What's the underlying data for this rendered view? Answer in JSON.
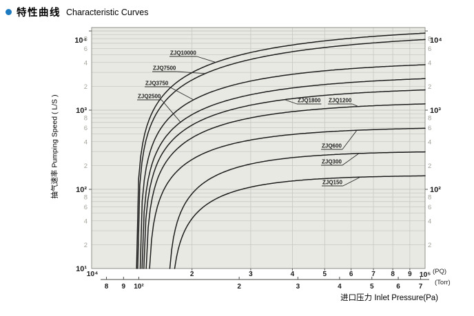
{
  "page_title": {
    "zh": "特性曲线",
    "en": "Characteristic Curves"
  },
  "accent_color": "#1c7ac0",
  "colors": {
    "plot_background": "#e9e9e4",
    "grid": "#c8c8c1",
    "plot_border": "#90908a",
    "curve": "#1c1c1c",
    "minor_tick_label": "#a3a29b",
    "major_tick_label": "#1a1a1a"
  },
  "chart_data": {
    "type": "line",
    "title": "特性曲线 Characteristic Curves",
    "xlabel": "进口压力 Inlet Pressure(Pa)",
    "ylabel": "抽气速率 Pumping Speed ( L/S )",
    "xscale": "log",
    "yscale": "log",
    "xlim_pa": [
      10000,
      100000
    ],
    "ylim_ls": [
      10,
      11500
    ],
    "grid": "on",
    "legend": "inline curve callouts",
    "x_axis_pa": {
      "unit_suffix": "(PQ)",
      "decade_ticks": [
        {
          "label": "10⁴",
          "value": 10000
        },
        {
          "label": "10⁵",
          "value": 100000
        }
      ],
      "minor_ticks": [
        2,
        3,
        4,
        5,
        6,
        7,
        8,
        9
      ]
    },
    "x_axis_torr": {
      "unit_suffix": "(Torr)",
      "ticks": [
        {
          "label": "8",
          "value_torr": 80
        },
        {
          "label": "9",
          "value_torr": 90
        },
        {
          "label": "10²",
          "value_torr": 100
        },
        {
          "label": "2",
          "value_torr": 200
        },
        {
          "label": "3",
          "value_torr": 300
        },
        {
          "label": "4",
          "value_torr": 400
        },
        {
          "label": "5",
          "value_torr": 500
        },
        {
          "label": "6",
          "value_torr": 600
        },
        {
          "label": "7",
          "value_torr": 700
        }
      ]
    },
    "y_axis": {
      "sides": [
        "left",
        "right"
      ],
      "decade_ticks": [
        {
          "label": "10⁴",
          "value": 10000
        },
        {
          "label": "10³",
          "value": 1000
        },
        {
          "label": "10²",
          "value": 100
        },
        {
          "label": "10¹",
          "value": 10
        }
      ],
      "right_side_decades": [
        "10⁴",
        "10³",
        "10²"
      ],
      "minor_tick_labels": [
        8,
        6,
        4,
        2
      ]
    },
    "series": [
      {
        "name": "ZJQ10000",
        "nominal_speed_ls": 10000,
        "onset_pa": 13620,
        "end_speed_ls": 9400,
        "k": 0.72
      },
      {
        "name": "ZJQ7500",
        "nominal_speed_ls": 7500,
        "onset_pa": 13730,
        "end_speed_ls": 7800,
        "k": 0.7
      },
      {
        "name": "ZJQ3750",
        "nominal_speed_ls": 3750,
        "onset_pa": 13950,
        "end_speed_ls": 3750,
        "k": 1.0
      },
      {
        "name": "ZJQ2500",
        "nominal_speed_ls": 2500,
        "onset_pa": 14120,
        "end_speed_ls": 2500,
        "k": 1.05
      },
      {
        "name": "ZJQ1800",
        "nominal_speed_ls": 1800,
        "onset_pa": 14280,
        "end_speed_ls": 1800,
        "k": 1.15
      },
      {
        "name": "ZJQ1200",
        "nominal_speed_ls": 1200,
        "onset_pa": 14490,
        "end_speed_ls": 1200,
        "k": 1.3
      },
      {
        "name": "ZJQ600",
        "nominal_speed_ls": 600,
        "onset_pa": 14770,
        "end_speed_ls": 590,
        "k": 1.6
      },
      {
        "name": "ZJQ300",
        "nominal_speed_ls": 300,
        "onset_pa": 16880,
        "end_speed_ls": 297,
        "k": 2.0
      },
      {
        "name": "ZJQ150",
        "nominal_speed_ls": 150,
        "onset_pa": 17200,
        "end_speed_ls": 148,
        "k": 2.2
      }
    ]
  }
}
